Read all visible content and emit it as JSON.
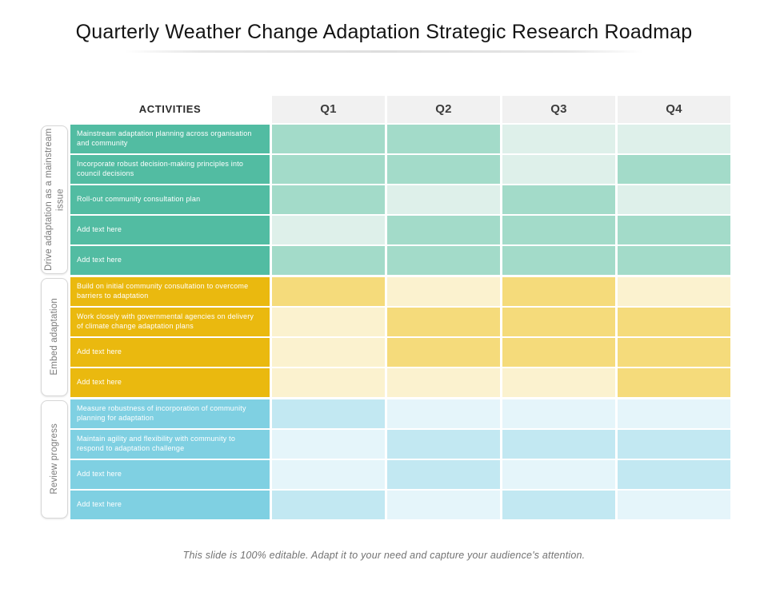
{
  "title": "Quarterly Weather Change Adaptation Strategic Research Roadmap",
  "footer": "This slide is 100% editable. Adapt it to your need and capture your audience's attention.",
  "table": {
    "activities_header": "ACTIVITIES",
    "quarter_headers": [
      "Q1",
      "Q2",
      "Q3",
      "Q4"
    ],
    "header_bg": "#f1f1f1",
    "groups": [
      {
        "label": "Drive adaptation as a mainstream issue",
        "colors": {
          "label_bg": "#52BCA2",
          "cell_on": "#A3DBC9",
          "cell_off": "#DEF0EA"
        },
        "rows": [
          {
            "activity": "Mainstream adaptation planning across organisation and community",
            "quarters": [
              1,
              1,
              0,
              0
            ]
          },
          {
            "activity": "Incorporate robust decision-making principles into council decisions",
            "quarters": [
              1,
              1,
              0,
              1
            ]
          },
          {
            "activity": "Roll-out community consultation plan",
            "quarters": [
              1,
              0,
              1,
              0
            ]
          },
          {
            "activity": "Add text here",
            "quarters": [
              0,
              1,
              1,
              1
            ]
          },
          {
            "activity": "Add text here",
            "quarters": [
              1,
              1,
              1,
              1
            ]
          }
        ]
      },
      {
        "label": "Embed adaptation",
        "colors": {
          "label_bg": "#EAB90F",
          "cell_on": "#F5DB7B",
          "cell_off": "#FBF2CF"
        },
        "rows": [
          {
            "activity": "Build on initial community consultation to overcome barriers to adaptation",
            "quarters": [
              1,
              0,
              1,
              0
            ]
          },
          {
            "activity": "Work closely with governmental agencies on delivery of climate change adaptation plans",
            "quarters": [
              0,
              1,
              1,
              1
            ]
          },
          {
            "activity": "Add text here",
            "quarters": [
              0,
              1,
              1,
              1
            ]
          },
          {
            "activity": "Add text here",
            "quarters": [
              0,
              0,
              0,
              1
            ]
          }
        ]
      },
      {
        "label": "Review progress",
        "colors": {
          "label_bg": "#7FD0E2",
          "cell_on": "#C2E8F2",
          "cell_off": "#E5F5FA"
        },
        "rows": [
          {
            "activity": "Measure robustness of incorporation of community planning for adaptation",
            "quarters": [
              1,
              0,
              0,
              0
            ]
          },
          {
            "activity": "Maintain agility and flexibility with community to respond to adaptation challenge",
            "quarters": [
              0,
              1,
              1,
              1
            ]
          },
          {
            "activity": "Add text here",
            "quarters": [
              0,
              1,
              0,
              1
            ]
          },
          {
            "activity": "Add text here",
            "quarters": [
              1,
              0,
              1,
              0
            ]
          }
        ]
      }
    ]
  }
}
